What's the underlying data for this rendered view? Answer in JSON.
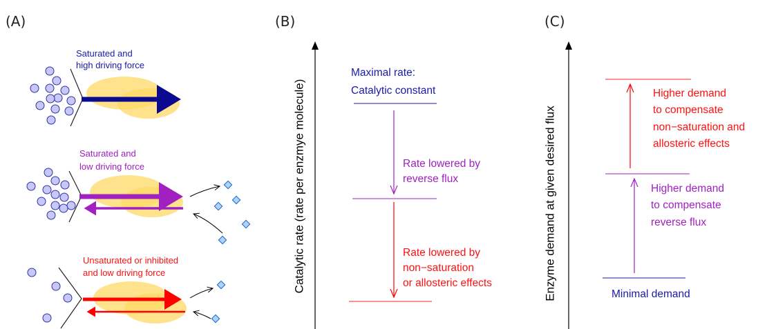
{
  "panel_a": {
    "label": "(A)",
    "cases": [
      {
        "lines": [
          "Saturated and",
          "high driving force"
        ]
      },
      {
        "lines": [
          "Saturated and",
          "low driving force"
        ]
      },
      {
        "lines": [
          "Unsaturated or inhibited",
          "and low driving force"
        ]
      }
    ]
  },
  "panel_b": {
    "label": "(B)",
    "axis_label": "Catalytic rate (rate per enzmye molecule)",
    "top": [
      "Maximal rate:",
      "Catalytic constant"
    ],
    "middle": [
      "Rate lowered by",
      "reverse flux"
    ],
    "bottom": [
      "Rate lowered by",
      "non−saturation",
      "or allosteric effects"
    ]
  },
  "panel_c": {
    "label": "(C)",
    "axis_label": "Enzyme demand at given desired flux",
    "upper": [
      "Higher demand",
      "to compensate",
      "non−saturation and",
      "allosteric effects"
    ],
    "middle": [
      "Higher demand",
      "to compensate",
      "reverse flux"
    ],
    "bottom": [
      "Minimal demand"
    ]
  }
}
